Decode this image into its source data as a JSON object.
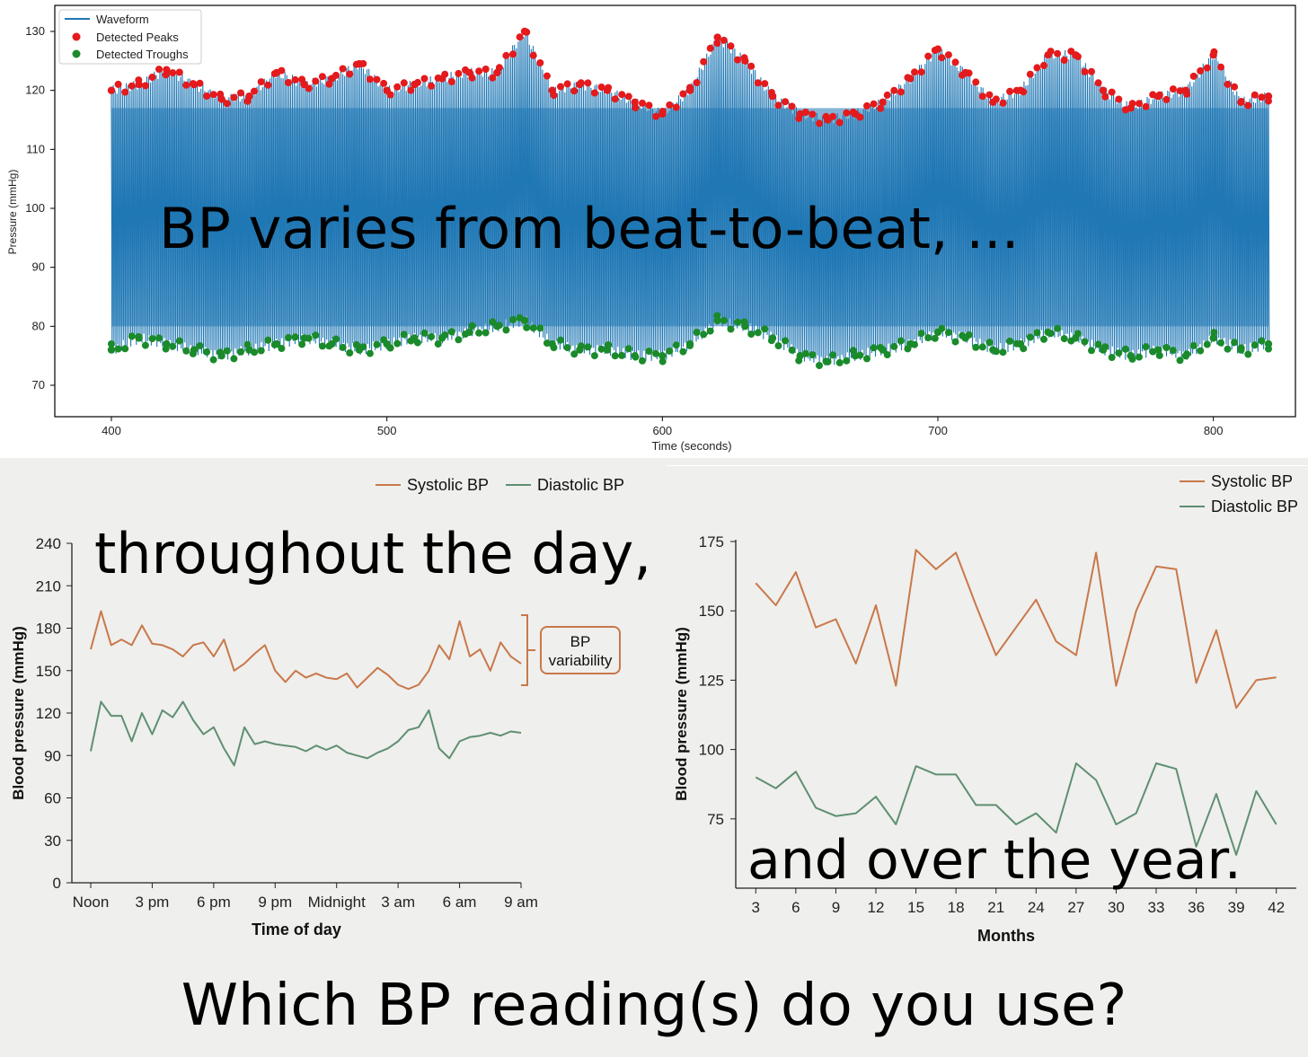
{
  "overlays": {
    "beat": "BP varies from beat-to-beat, ...",
    "day": "throughout the day,",
    "year": "and over the year.",
    "question": "Which BP reading(s) do you use?"
  },
  "colors": {
    "waveform": "#1f77b4",
    "peaks": "#e41a1c",
    "troughs": "#1a8a2a",
    "systolic": "#c8784a",
    "diastolic": "#5f8f72",
    "panel_bg": "#efefed"
  },
  "chart_data": [
    {
      "type": "line",
      "title": "",
      "xlabel": "Time (seconds)",
      "ylabel": "Pressure (mmHg)",
      "xlim": [
        400,
        820
      ],
      "ylim": [
        65,
        133
      ],
      "xticks": [
        400,
        500,
        600,
        700,
        800
      ],
      "yticks": [
        70,
        80,
        90,
        100,
        110,
        120,
        130
      ],
      "legend": {
        "position": "top-left",
        "entries": [
          "Waveform",
          "Detected Peaks",
          "Detected Troughs"
        ]
      },
      "series": [
        {
          "name": "Detected Peaks",
          "kind": "scatter",
          "x": [
            400,
            410,
            420,
            430,
            440,
            450,
            460,
            470,
            480,
            490,
            500,
            510,
            520,
            530,
            540,
            550,
            560,
            570,
            580,
            590,
            600,
            610,
            620,
            630,
            640,
            650,
            660,
            670,
            680,
            690,
            700,
            710,
            720,
            730,
            740,
            750,
            760,
            770,
            780,
            790,
            800,
            810,
            820
          ],
          "y": [
            120,
            121,
            123.5,
            121,
            118.5,
            119,
            123,
            121,
            122,
            124.5,
            120,
            121,
            122,
            123,
            123,
            130,
            120,
            121,
            120,
            118,
            116,
            120,
            129,
            125,
            119,
            116,
            115,
            116,
            118,
            122,
            127,
            123,
            118,
            120,
            126,
            126,
            120,
            117,
            119,
            120,
            126,
            118,
            119
          ]
        },
        {
          "name": "Detected Troughs",
          "kind": "scatter",
          "x": [
            400,
            410,
            420,
            430,
            440,
            450,
            460,
            470,
            480,
            490,
            500,
            510,
            520,
            530,
            540,
            550,
            560,
            570,
            580,
            590,
            600,
            610,
            620,
            630,
            640,
            650,
            660,
            670,
            680,
            690,
            700,
            710,
            720,
            730,
            740,
            750,
            760,
            770,
            780,
            790,
            800,
            810,
            820
          ],
          "y": [
            76,
            78,
            77,
            76,
            75,
            76,
            77,
            78,
            77,
            76,
            77,
            78,
            78,
            79,
            80,
            81,
            77,
            76,
            76,
            75,
            75,
            77,
            81,
            80,
            78,
            75,
            74,
            75,
            76,
            77,
            79,
            78,
            76,
            77,
            79,
            78,
            76,
            75,
            76,
            75,
            78,
            76,
            77
          ]
        }
      ]
    },
    {
      "type": "line",
      "title": "",
      "xlabel": "Time of day",
      "ylabel": "Blood pressure (mmHg)",
      "categories": [
        "Noon",
        "3 pm",
        "6 pm",
        "9 pm",
        "Midnight",
        "3 am",
        "6 am",
        "9 am"
      ],
      "ylim": [
        0,
        240
      ],
      "yticks": [
        0,
        30,
        60,
        90,
        120,
        150,
        180,
        210,
        240
      ],
      "legend": {
        "position": "top-right",
        "entries": [
          "Systolic BP",
          "Diastolic BP"
        ]
      },
      "annotation": "BP variability",
      "series": [
        {
          "name": "Systolic BP",
          "x": [
            0,
            0.5,
            1,
            1.5,
            2,
            2.5,
            3,
            3.5,
            4,
            4.5,
            5,
            5.5,
            6,
            6.5,
            7,
            7.5,
            8,
            8.5,
            9,
            9.5,
            10,
            10.5,
            11,
            11.5,
            12,
            12.5,
            13,
            13.5,
            14,
            14.5,
            15,
            15.5,
            16,
            16.5,
            17,
            17.5,
            18,
            18.5,
            19,
            19.5,
            20,
            20.5,
            21
          ],
          "y": [
            165,
            192,
            168,
            172,
            168,
            182,
            169,
            168,
            165,
            160,
            168,
            170,
            160,
            172,
            150,
            155,
            162,
            168,
            150,
            142,
            150,
            145,
            148,
            145,
            144,
            148,
            138,
            145,
            152,
            147,
            140,
            137,
            140,
            150,
            168,
            158,
            185,
            160,
            165,
            150,
            170,
            160,
            155
          ]
        },
        {
          "name": "Diastolic BP",
          "x": [
            0,
            0.5,
            1,
            1.5,
            2,
            2.5,
            3,
            3.5,
            4,
            4.5,
            5,
            5.5,
            6,
            6.5,
            7,
            7.5,
            8,
            8.5,
            9,
            9.5,
            10,
            10.5,
            11,
            11.5,
            12,
            12.5,
            13,
            13.5,
            14,
            14.5,
            15,
            15.5,
            16,
            16.5,
            17,
            17.5,
            18,
            18.5,
            19,
            19.5,
            20,
            20.5,
            21
          ],
          "y": [
            93,
            128,
            118,
            118,
            100,
            120,
            105,
            122,
            117,
            128,
            115,
            105,
            110,
            95,
            83,
            110,
            98,
            100,
            98,
            97,
            96,
            93,
            97,
            94,
            97,
            92,
            90,
            88,
            92,
            95,
            100,
            108,
            110,
            122,
            95,
            88,
            100,
            103,
            104,
            106,
            104,
            107,
            106
          ]
        }
      ]
    },
    {
      "type": "line",
      "title": "",
      "xlabel": "Months",
      "ylabel": "Blood pressure (mmHg)",
      "xticks": [
        3,
        6,
        9,
        12,
        15,
        18,
        21,
        24,
        27,
        30,
        33,
        36,
        39,
        42
      ],
      "xlim": [
        1.5,
        43.5
      ],
      "ylim": [
        50,
        175
      ],
      "yticks": [
        75,
        100,
        125,
        150,
        175
      ],
      "legend": {
        "position": "top-right",
        "entries": [
          "Systolic BP",
          "Diastolic BP"
        ]
      },
      "series": [
        {
          "name": "Systolic BP",
          "x": [
            3,
            4.5,
            6,
            7.5,
            9,
            10.5,
            12,
            13.5,
            15,
            16.5,
            18,
            19.5,
            21,
            22.5,
            24,
            25.5,
            27,
            28.5,
            30,
            31.5,
            33,
            34.5,
            36,
            37.5,
            39,
            40.5,
            42
          ],
          "y": [
            160,
            152,
            164,
            144,
            147,
            131,
            152,
            123,
            172,
            165,
            171,
            152,
            134,
            144,
            154,
            139,
            134,
            171,
            123,
            150,
            166,
            165,
            124,
            143,
            115,
            125,
            126
          ]
        },
        {
          "name": "Diastolic BP",
          "x": [
            3,
            4.5,
            6,
            7.5,
            9,
            10.5,
            12,
            13.5,
            15,
            16.5,
            18,
            19.5,
            21,
            22.5,
            24,
            25.5,
            27,
            28.5,
            30,
            31.5,
            33,
            34.5,
            36,
            37.5,
            39,
            40.5,
            42
          ],
          "y": [
            90,
            86,
            92,
            79,
            76,
            77,
            83,
            73,
            94,
            91,
            91,
            80,
            80,
            73,
            77,
            70,
            95,
            89,
            73,
            77,
            95,
            93,
            65,
            84,
            62,
            85,
            73
          ]
        }
      ]
    }
  ],
  "labels": {
    "top_xlabel": "Time (seconds)",
    "top_ylabel": "Pressure (mmHg)",
    "bl_xlabel": "Time of day",
    "bl_ylabel": "Blood pressure (mmHg)",
    "br_xlabel": "Months",
    "br_ylabel": "Blood pressure (mmHg)",
    "legend_waveform": "Waveform",
    "legend_peaks": "Detected Peaks",
    "legend_troughs": "Detected Troughs",
    "legend_systolic": "Systolic BP",
    "legend_diastolic": "Diastolic BP",
    "variability_line1": "BP",
    "variability_line2": "variability"
  }
}
